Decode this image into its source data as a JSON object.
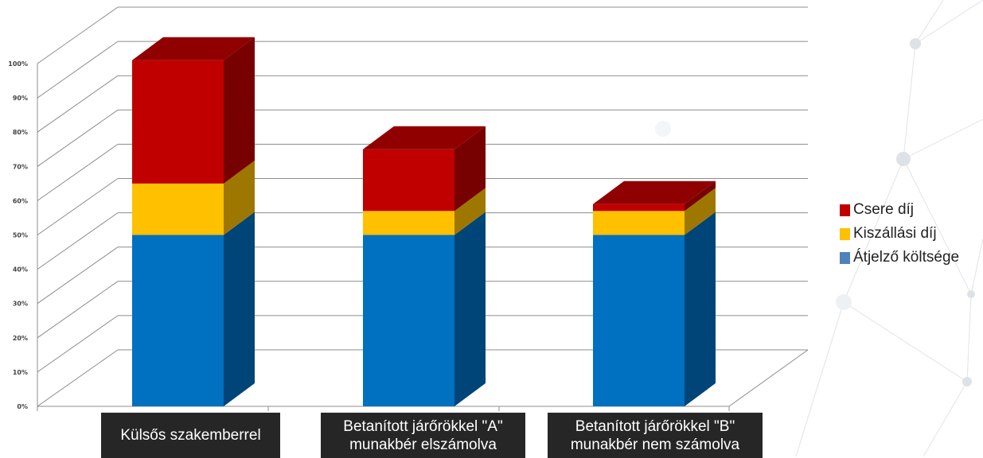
{
  "chart_data": {
    "type": "bar",
    "stacked": true,
    "three_d": true,
    "categories": [
      "Külsős szakemberrel",
      "Betanított járőrökkel \"A\"\nmunakbér elszámolva",
      "Betanított járőrökkel \"B\"\nmunakbér nem számolva"
    ],
    "series": [
      {
        "name": "Átjelző költsége",
        "values": [
          50,
          50,
          50
        ],
        "color": "#0070c0"
      },
      {
        "name": "Kiszállási díj",
        "values": [
          15,
          7,
          7
        ],
        "color": "#ffc000"
      },
      {
        "name": "Csere díj",
        "values": [
          36,
          18,
          2
        ],
        "color": "#c00000"
      }
    ],
    "ylim": [
      0,
      100
    ],
    "yticks": [
      "0%",
      "10%",
      "20%",
      "30%",
      "40%",
      "50%",
      "60%",
      "70%",
      "80%",
      "90%",
      "100%"
    ],
    "grid": true,
    "legend": "right"
  }
}
